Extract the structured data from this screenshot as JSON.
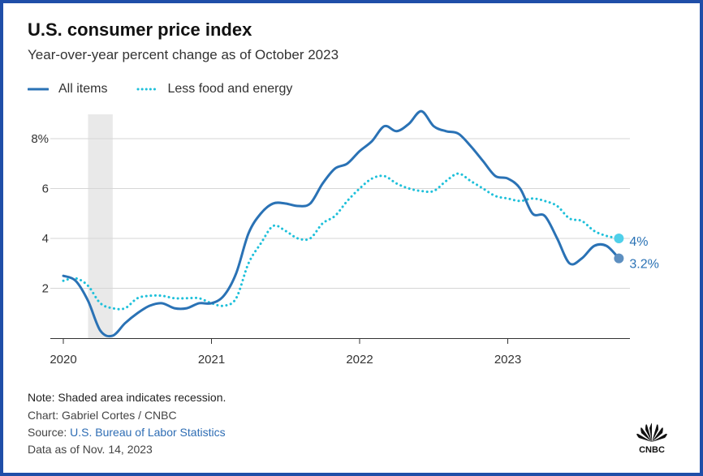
{
  "header": {
    "title": "U.S. consumer price index",
    "subtitle": "Year-over-year percent change as of October 2023"
  },
  "legend": {
    "items": [
      {
        "label": "All items",
        "color": "#2a72b5",
        "style": "solid"
      },
      {
        "label": "Less food and energy",
        "color": "#1ec0da",
        "style": "dotted"
      }
    ]
  },
  "footer": {
    "note": "Note: Shaded area indicates recession.",
    "chart_credit": "Chart: Gabriel Cortes / CNBC",
    "source_prefix": "Source: ",
    "source_link": "U.S. Bureau of Labor Statistics",
    "data_date": "Data as of Nov. 14, 2023"
  },
  "logo": {
    "text": "CNBC"
  },
  "chart_data": {
    "type": "line",
    "title": "U.S. consumer price index",
    "subtitle": "Year-over-year percent change as of October 2023",
    "x_tick_labels": [
      "2020",
      "2021",
      "2022",
      "2023"
    ],
    "y_tick_labels": [
      "2",
      "4",
      "6",
      "8%"
    ],
    "y_ticks": [
      2,
      4,
      6,
      8
    ],
    "ylim": [
      0,
      9
    ],
    "xlim": [
      "2020-01",
      "2023-10"
    ],
    "grid": "horizontal",
    "legend_position": "top-left",
    "recession": {
      "start": "2020-03",
      "end": "2020-04"
    },
    "x": [
      "2020-01",
      "2020-02",
      "2020-03",
      "2020-04",
      "2020-05",
      "2020-06",
      "2020-07",
      "2020-08",
      "2020-09",
      "2020-10",
      "2020-11",
      "2020-12",
      "2021-01",
      "2021-02",
      "2021-03",
      "2021-04",
      "2021-05",
      "2021-06",
      "2021-07",
      "2021-08",
      "2021-09",
      "2021-10",
      "2021-11",
      "2021-12",
      "2022-01",
      "2022-02",
      "2022-03",
      "2022-04",
      "2022-05",
      "2022-06",
      "2022-07",
      "2022-08",
      "2022-09",
      "2022-10",
      "2022-11",
      "2022-12",
      "2023-01",
      "2023-02",
      "2023-03",
      "2023-04",
      "2023-05",
      "2023-06",
      "2023-07",
      "2023-08",
      "2023-09",
      "2023-10"
    ],
    "series": [
      {
        "name": "All items",
        "color": "#2a72b5",
        "style": "solid",
        "end_label": "3.2%",
        "values": [
          2.5,
          2.3,
          1.5,
          0.3,
          0.1,
          0.6,
          1.0,
          1.3,
          1.4,
          1.2,
          1.2,
          1.4,
          1.4,
          1.7,
          2.6,
          4.2,
          5.0,
          5.4,
          5.4,
          5.3,
          5.4,
          6.2,
          6.8,
          7.0,
          7.5,
          7.9,
          8.5,
          8.3,
          8.6,
          9.1,
          8.5,
          8.3,
          8.2,
          7.7,
          7.1,
          6.5,
          6.4,
          6.0,
          5.0,
          4.9,
          4.0,
          3.0,
          3.2,
          3.7,
          3.7,
          3.2
        ]
      },
      {
        "name": "Less food and energy",
        "color": "#1ec0da",
        "style": "dotted",
        "end_label": "4%",
        "values": [
          2.3,
          2.4,
          2.1,
          1.4,
          1.2,
          1.2,
          1.6,
          1.7,
          1.7,
          1.6,
          1.6,
          1.6,
          1.4,
          1.3,
          1.6,
          3.0,
          3.8,
          4.5,
          4.3,
          4.0,
          4.0,
          4.6,
          4.9,
          5.5,
          6.0,
          6.4,
          6.5,
          6.2,
          6.0,
          5.9,
          5.9,
          6.3,
          6.6,
          6.3,
          6.0,
          5.7,
          5.6,
          5.5,
          5.6,
          5.5,
          5.3,
          4.8,
          4.7,
          4.3,
          4.1,
          4.0
        ]
      }
    ]
  }
}
